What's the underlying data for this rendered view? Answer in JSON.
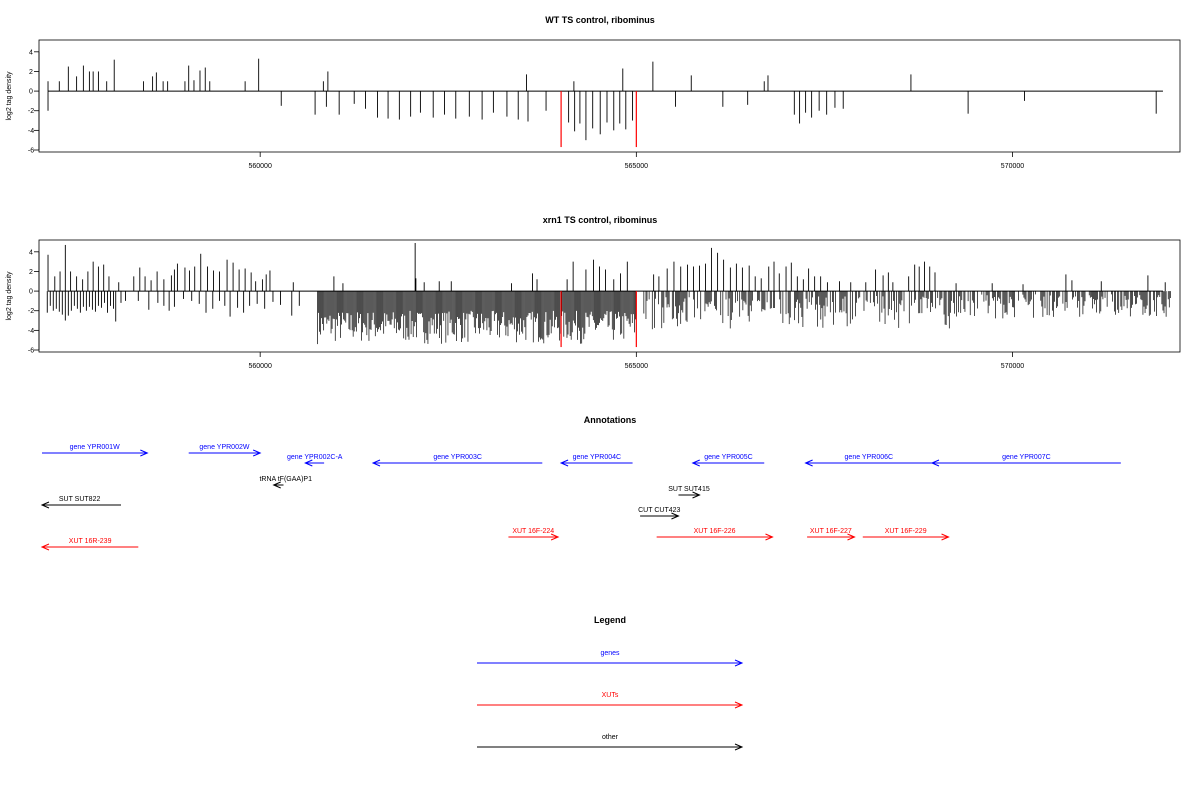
{
  "chart_data": [
    {
      "type": "bar",
      "title": "WT TS control, ribominus",
      "ylabel": "log2 tag density",
      "xlim": [
        557100,
        572200
      ],
      "ylim": [
        -6,
        5
      ],
      "yticks": [
        4,
        2,
        0,
        -2,
        -4,
        -6
      ],
      "xticks": [
        560000,
        565000,
        570000
      ],
      "xtick_labels": [
        "560000",
        "565000",
        "570000"
      ],
      "markers": [
        {
          "x": 564000,
          "value": -5.7,
          "color": "#ff0000"
        },
        {
          "x": 565000,
          "value": -5.7,
          "color": "#ff0000"
        }
      ],
      "positive": [
        [
          557180,
          1.0
        ],
        [
          557330,
          1.0
        ],
        [
          557450,
          2.5
        ],
        [
          557560,
          1.5
        ],
        [
          557650,
          2.6
        ],
        [
          557730,
          2.0
        ],
        [
          557780,
          2.0
        ],
        [
          557850,
          2.0
        ],
        [
          557960,
          1.0
        ],
        [
          558060,
          3.2
        ],
        [
          558450,
          1.0
        ],
        [
          558570,
          1.5
        ],
        [
          558620,
          1.9
        ],
        [
          558710,
          1.0
        ],
        [
          558770,
          1.0
        ],
        [
          559000,
          1.0
        ],
        [
          559050,
          2.6
        ],
        [
          559120,
          1.1
        ],
        [
          559200,
          2.1
        ],
        [
          559270,
          2.4
        ],
        [
          559330,
          1.0
        ],
        [
          559800,
          1.0
        ],
        [
          559980,
          3.3
        ],
        [
          560840,
          1.0
        ],
        [
          560900,
          2.0
        ],
        [
          563540,
          1.7
        ],
        [
          564170,
          1.0
        ],
        [
          564820,
          2.3
        ],
        [
          565220,
          3.0
        ],
        [
          565730,
          1.6
        ],
        [
          566700,
          1.0
        ],
        [
          566750,
          1.6
        ],
        [
          568650,
          1.7
        ]
      ],
      "negative": [
        [
          557180,
          -2.0
        ],
        [
          560280,
          -1.5
        ],
        [
          560730,
          -2.4
        ],
        [
          560880,
          -1.6
        ],
        [
          561050,
          -2.4
        ],
        [
          561250,
          -1.3
        ],
        [
          561400,
          -1.8
        ],
        [
          561560,
          -2.7
        ],
        [
          561700,
          -2.8
        ],
        [
          561850,
          -2.9
        ],
        [
          562000,
          -2.6
        ],
        [
          562130,
          -2.2
        ],
        [
          562300,
          -2.7
        ],
        [
          562450,
          -2.4
        ],
        [
          562600,
          -2.8
        ],
        [
          562780,
          -2.6
        ],
        [
          562950,
          -2.9
        ],
        [
          563100,
          -2.2
        ],
        [
          563280,
          -2.6
        ],
        [
          563430,
          -2.9
        ],
        [
          563560,
          -3.1
        ],
        [
          563800,
          -2.0
        ],
        [
          564100,
          -3.2
        ],
        [
          564180,
          -4.1
        ],
        [
          564250,
          -3.3
        ],
        [
          564330,
          -5.0
        ],
        [
          564420,
          -3.8
        ],
        [
          564520,
          -4.4
        ],
        [
          564610,
          -3.2
        ],
        [
          564700,
          -4.0
        ],
        [
          564780,
          -3.3
        ],
        [
          564860,
          -3.9
        ],
        [
          564950,
          -3.0
        ],
        [
          565520,
          -1.6
        ],
        [
          566150,
          -1.6
        ],
        [
          566480,
          -1.4
        ],
        [
          567100,
          -2.4
        ],
        [
          567170,
          -3.3
        ],
        [
          567250,
          -2.2
        ],
        [
          567330,
          -2.7
        ],
        [
          567430,
          -2.0
        ],
        [
          567530,
          -2.4
        ],
        [
          567640,
          -1.7
        ],
        [
          567750,
          -1.8
        ],
        [
          569410,
          -2.3
        ],
        [
          570160,
          -1.0
        ],
        [
          571910,
          -2.3
        ]
      ]
    },
    {
      "type": "bar",
      "title": "xrn1 TS control, ribominus",
      "ylabel": "log2 tag density",
      "xlim": [
        557100,
        572200
      ],
      "ylim": [
        -6,
        5
      ],
      "yticks": [
        4,
        2,
        0,
        -2,
        -4,
        -6
      ],
      "xticks": [
        560000,
        565000,
        570000
      ],
      "xtick_labels": [
        "560000",
        "565000",
        "570000"
      ],
      "markers": [
        {
          "x": 564000,
          "value": -5.7,
          "color": "#ff0000"
        },
        {
          "x": 565000,
          "value": -5.7,
          "color": "#ff0000"
        }
      ],
      "positive": [
        [
          557180,
          3.7
        ],
        [
          557270,
          1.5
        ],
        [
          557340,
          2.0
        ],
        [
          557410,
          4.7
        ],
        [
          557480,
          2.0
        ],
        [
          557560,
          1.5
        ],
        [
          557640,
          1.2
        ],
        [
          557710,
          2.0
        ],
        [
          557780,
          3.0
        ],
        [
          557850,
          2.5
        ],
        [
          557920,
          2.7
        ],
        [
          557990,
          1.5
        ],
        [
          558120,
          0.9
        ],
        [
          558320,
          1.5
        ],
        [
          558400,
          2.4
        ],
        [
          558470,
          1.5
        ],
        [
          558550,
          1.1
        ],
        [
          558630,
          2.0
        ],
        [
          558720,
          1.2
        ],
        [
          558820,
          1.6
        ],
        [
          558860,
          2.2
        ],
        [
          558900,
          2.8
        ],
        [
          559000,
          2.4
        ],
        [
          559060,
          2.1
        ],
        [
          559130,
          2.5
        ],
        [
          559210,
          3.8
        ],
        [
          559300,
          2.5
        ],
        [
          559380,
          2.1
        ],
        [
          559460,
          2.0
        ],
        [
          559560,
          3.2
        ],
        [
          559640,
          2.9
        ],
        [
          559720,
          2.2
        ],
        [
          559800,
          2.3
        ],
        [
          559880,
          1.9
        ],
        [
          559940,
          1.0
        ],
        [
          560030,
          1.2
        ],
        [
          560080,
          1.7
        ],
        [
          560130,
          2.1
        ],
        [
          560440,
          0.9
        ],
        [
          560980,
          1.5
        ],
        [
          561100,
          0.8
        ],
        [
          562070,
          1.3
        ],
        [
          562180,
          0.9
        ],
        [
          562060,
          4.9
        ],
        [
          562380,
          1.0
        ],
        [
          562540,
          1.0
        ],
        [
          563340,
          0.8
        ],
        [
          563620,
          1.8
        ],
        [
          563680,
          1.2
        ],
        [
          564080,
          1.2
        ],
        [
          564160,
          3.0
        ],
        [
          564330,
          2.2
        ],
        [
          564430,
          3.2
        ],
        [
          564510,
          2.5
        ],
        [
          564590,
          2.2
        ],
        [
          564700,
          1.2
        ],
        [
          564790,
          1.8
        ],
        [
          564880,
          3.0
        ],
        [
          565230,
          1.7
        ],
        [
          565300,
          1.5
        ],
        [
          565410,
          2.3
        ],
        [
          565500,
          3.0
        ],
        [
          565590,
          2.5
        ],
        [
          565680,
          2.7
        ],
        [
          565760,
          2.5
        ],
        [
          565840,
          2.6
        ],
        [
          565920,
          2.8
        ],
        [
          566000,
          4.4
        ],
        [
          566080,
          3.9
        ],
        [
          566160,
          3.2
        ],
        [
          566250,
          2.4
        ],
        [
          566330,
          2.8
        ],
        [
          566410,
          2.4
        ],
        [
          566500,
          2.6
        ],
        [
          566580,
          1.5
        ],
        [
          566660,
          1.3
        ],
        [
          566760,
          2.5
        ],
        [
          566830,
          3.0
        ],
        [
          566900,
          1.8
        ],
        [
          566990,
          2.5
        ],
        [
          567060,
          2.9
        ],
        [
          567140,
          1.5
        ],
        [
          567220,
          1.2
        ],
        [
          567290,
          2.3
        ],
        [
          567370,
          1.5
        ],
        [
          567450,
          1.5
        ],
        [
          567540,
          0.9
        ],
        [
          567700,
          1.0
        ],
        [
          567850,
          0.9
        ],
        [
          568050,
          0.9
        ],
        [
          568180,
          2.2
        ],
        [
          568280,
          1.6
        ],
        [
          568350,
          1.9
        ],
        [
          568410,
          0.9
        ],
        [
          568620,
          1.5
        ],
        [
          568700,
          2.7
        ],
        [
          568760,
          2.5
        ],
        [
          568830,
          3.0
        ],
        [
          568900,
          2.5
        ],
        [
          568970,
          1.9
        ],
        [
          569250,
          0.8
        ],
        [
          569730,
          0.8
        ],
        [
          570140,
          0.7
        ],
        [
          570710,
          1.7
        ],
        [
          570790,
          1.1
        ],
        [
          571180,
          1.0
        ],
        [
          571800,
          1.6
        ],
        [
          572030,
          0.9
        ]
      ],
      "negative": [
        [
          557170,
          -2.2
        ],
        [
          557210,
          -1.5
        ],
        [
          557250,
          -2.0
        ],
        [
          557290,
          -1.8
        ],
        [
          557330,
          -2.1
        ],
        [
          557370,
          -2.4
        ],
        [
          557410,
          -3.0
        ],
        [
          557450,
          -2.5
        ],
        [
          557490,
          -2.0
        ],
        [
          557530,
          -1.5
        ],
        [
          557570,
          -1.8
        ],
        [
          557610,
          -2.2
        ],
        [
          557650,
          -1.6
        ],
        [
          557690,
          -2.0
        ],
        [
          557730,
          -1.6
        ],
        [
          557770,
          -1.9
        ],
        [
          557810,
          -2.1
        ],
        [
          557850,
          -1.5
        ],
        [
          557890,
          -1.7
        ],
        [
          557930,
          -1.2
        ],
        [
          557970,
          -2.2
        ],
        [
          558010,
          -1.5
        ],
        [
          558050,
          -1.8
        ],
        [
          558080,
          -3.1
        ],
        [
          558150,
          -1.2
        ],
        [
          558210,
          -1.0
        ],
        [
          558380,
          -1.0
        ],
        [
          558520,
          -1.9
        ],
        [
          558640,
          -1.2
        ],
        [
          558720,
          -1.5
        ],
        [
          558790,
          -2.0
        ],
        [
          558860,
          -1.6
        ],
        [
          558980,
          -0.8
        ],
        [
          559090,
          -1.0
        ],
        [
          559190,
          -1.3
        ],
        [
          559280,
          -2.2
        ],
        [
          559370,
          -1.8
        ],
        [
          559460,
          -1.0
        ],
        [
          559530,
          -1.5
        ],
        [
          559600,
          -2.6
        ],
        [
          559700,
          -1.7
        ],
        [
          559780,
          -2.2
        ],
        [
          559860,
          -1.5
        ],
        [
          559960,
          -1.3
        ],
        [
          560060,
          -1.8
        ],
        [
          560170,
          -1.1
        ],
        [
          560270,
          -1.4
        ],
        [
          560420,
          -2.5
        ],
        [
          560520,
          -1.5
        ]
      ],
      "dense_negative": {
        "from": 560760,
        "to": 565000,
        "min": -5.4,
        "max": -2.0
      },
      "dense_negative_b": {
        "from": 565100,
        "to": 569200,
        "min": -3.9,
        "max": -0.5
      },
      "dense_negative_c": {
        "from": 569200,
        "to": 572100,
        "min": -2.8,
        "max": -0.3
      }
    }
  ],
  "annotations": {
    "title": "Annotations",
    "items": [
      {
        "label": "gene YPR001W",
        "group": "genes",
        "color": "#0000ff",
        "direction": "forward",
        "from": 557100,
        "to": 558500
      },
      {
        "label": "gene YPR002W",
        "group": "genes",
        "color": "#0000ff",
        "direction": "forward",
        "from": 559050,
        "to": 560000
      },
      {
        "label": "gene YPR002C-A",
        "group": "genes",
        "color": "#0000ff",
        "direction": "reverse",
        "from": 560600,
        "to": 560850
      },
      {
        "label": "gene YPR003C",
        "group": "genes",
        "color": "#0000ff",
        "direction": "reverse",
        "from": 561500,
        "to": 563750
      },
      {
        "label": "gene YPR004C",
        "group": "genes",
        "color": "#0000ff",
        "direction": "reverse",
        "from": 564000,
        "to": 564950
      },
      {
        "label": "gene YPR005C",
        "group": "genes",
        "color": "#0000ff",
        "direction": "reverse",
        "from": 565750,
        "to": 566700
      },
      {
        "label": "gene YPR006C",
        "group": "genes",
        "color": "#0000ff",
        "direction": "reverse",
        "from": 567250,
        "to": 568930
      },
      {
        "label": "gene YPR007C",
        "group": "genes",
        "color": "#0000ff",
        "direction": "reverse",
        "from": 568930,
        "to": 571440
      },
      {
        "label": "tRNA tF(GAA)P1",
        "group": "other",
        "color": "#000000",
        "direction": "reverse",
        "from": 560180,
        "to": 560310
      },
      {
        "label": "SUT SUT822",
        "group": "other",
        "color": "#000000",
        "direction": "reverse",
        "from": 557100,
        "to": 558150
      },
      {
        "label": "SUT SUT415",
        "group": "other",
        "color": "#000000",
        "direction": "forward",
        "from": 565560,
        "to": 565840
      },
      {
        "label": "CUT CUT423",
        "group": "other",
        "color": "#000000",
        "direction": "forward",
        "from": 565050,
        "to": 565560
      },
      {
        "label": "XUT 16R-239",
        "group": "XUTs",
        "color": "#ff0000",
        "direction": "reverse",
        "from": 557100,
        "to": 558380
      },
      {
        "label": "XUT 16F-224",
        "group": "XUTs",
        "color": "#ff0000",
        "direction": "forward",
        "from": 563300,
        "to": 563960
      },
      {
        "label": "XUT 16F-226",
        "group": "XUTs",
        "color": "#ff0000",
        "direction": "forward",
        "from": 565270,
        "to": 566810
      },
      {
        "label": "XUT 16F-227",
        "group": "XUTs",
        "color": "#ff0000",
        "direction": "forward",
        "from": 567270,
        "to": 567900
      },
      {
        "label": "XUT 16F-229",
        "group": "XUTs",
        "color": "#ff0000",
        "direction": "forward",
        "from": 568010,
        "to": 569150
      }
    ]
  },
  "legend": {
    "title": "Legend",
    "items": [
      {
        "label": "genes",
        "color": "#0000ff"
      },
      {
        "label": "XUTs",
        "color": "#ff0000"
      },
      {
        "label": "other",
        "color": "#000000"
      }
    ]
  }
}
